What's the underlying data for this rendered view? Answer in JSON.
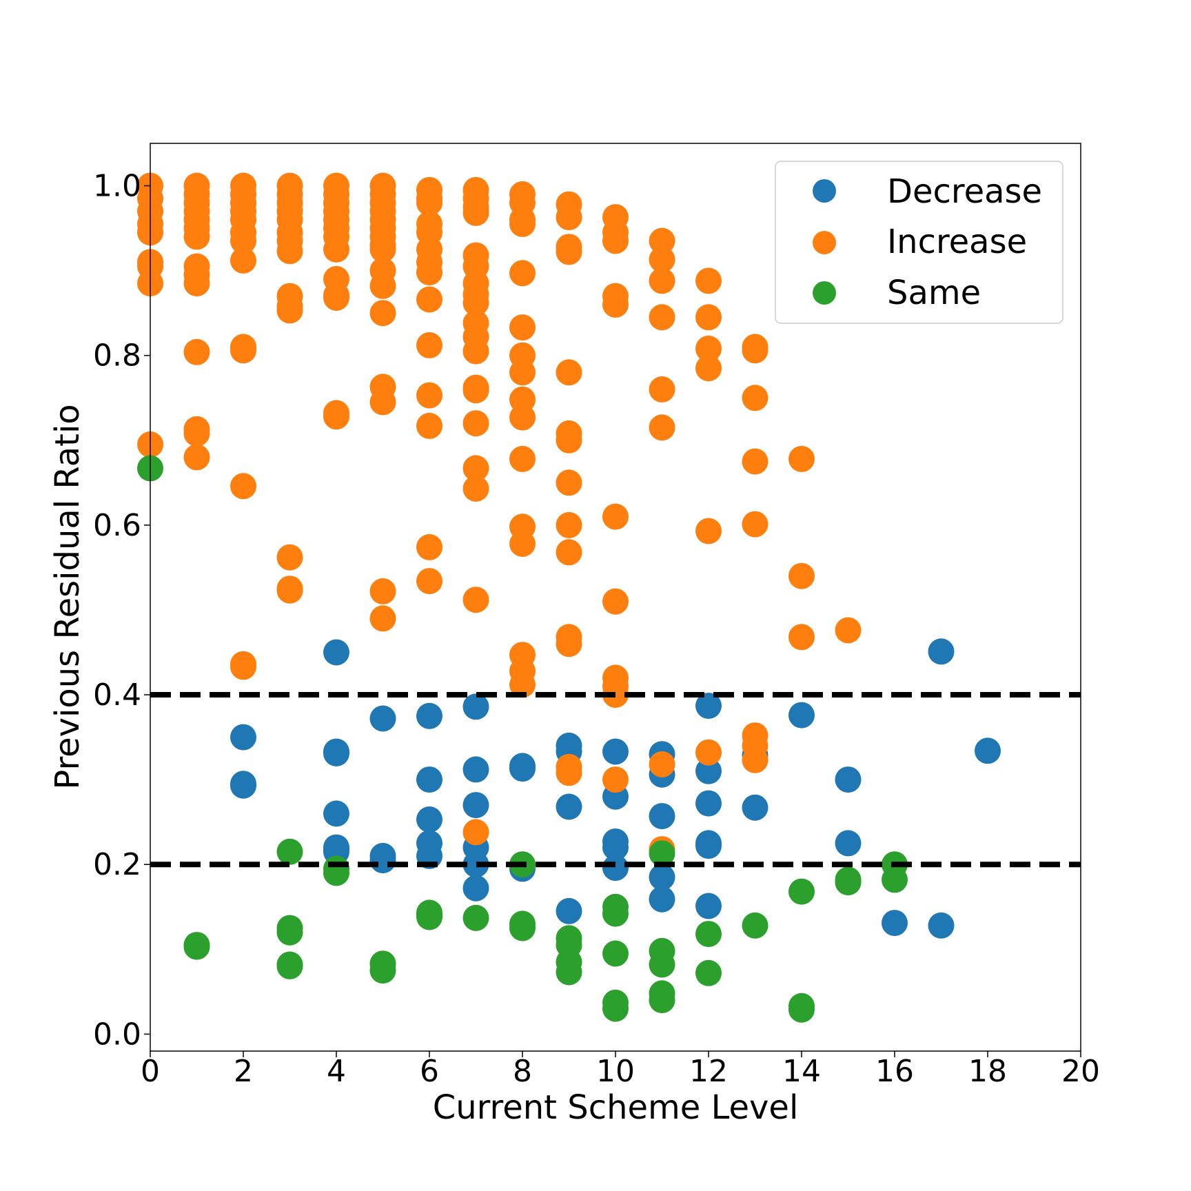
{
  "chart_data": {
    "type": "scatter",
    "title": "",
    "xlabel": "Current Scheme Level",
    "ylabel": "Previous Residual Ratio",
    "xlim": [
      0,
      20
    ],
    "ylim": [
      -0.02,
      1.05
    ],
    "xticks": [
      0,
      2,
      4,
      6,
      8,
      10,
      12,
      14,
      16,
      18,
      20
    ],
    "xtick_labels": [
      "0",
      "2",
      "4",
      "6",
      "8",
      "10",
      "12",
      "14",
      "16",
      "18",
      "20"
    ],
    "yticks": [
      0.0,
      0.2,
      0.4,
      0.6,
      0.8,
      1.0
    ],
    "ytick_labels": [
      "0.0",
      "0.2",
      "0.4",
      "0.6",
      "0.8",
      "1.0"
    ],
    "grid": false,
    "legend_position": "top-right",
    "hlines": [
      {
        "y": 0.4,
        "style": "dashed",
        "color": "#000000"
      },
      {
        "y": 0.2,
        "style": "dashed",
        "color": "#000000"
      }
    ],
    "series": [
      {
        "name": "Decrease",
        "color": "#1f77b4",
        "points": [
          [
            2,
            0.35
          ],
          [
            2,
            0.295
          ],
          [
            2,
            0.293
          ],
          [
            4,
            0.45
          ],
          [
            4,
            0.333
          ],
          [
            4,
            0.331
          ],
          [
            4,
            0.26
          ],
          [
            4,
            0.22
          ],
          [
            4,
            0.218
          ],
          [
            4,
            0.215
          ],
          [
            5,
            0.372
          ],
          [
            5,
            0.21
          ],
          [
            5,
            0.205
          ],
          [
            6,
            0.375
          ],
          [
            6,
            0.3
          ],
          [
            6,
            0.253
          ],
          [
            6,
            0.225
          ],
          [
            6,
            0.21
          ],
          [
            6,
            0.14
          ],
          [
            7,
            0.386
          ],
          [
            7,
            0.312
          ],
          [
            7,
            0.27
          ],
          [
            7,
            0.22
          ],
          [
            7,
            0.2
          ],
          [
            7,
            0.172
          ],
          [
            8,
            0.316
          ],
          [
            8,
            0.313
          ],
          [
            8,
            0.195
          ],
          [
            9,
            0.34
          ],
          [
            9,
            0.333
          ],
          [
            9,
            0.268
          ],
          [
            9,
            0.145
          ],
          [
            10,
            0.333
          ],
          [
            10,
            0.28
          ],
          [
            10,
            0.227
          ],
          [
            10,
            0.22
          ],
          [
            10,
            0.196
          ],
          [
            11,
            0.33
          ],
          [
            11,
            0.306
          ],
          [
            11,
            0.257
          ],
          [
            11,
            0.185
          ],
          [
            11,
            0.159
          ],
          [
            12,
            0.387
          ],
          [
            12,
            0.31
          ],
          [
            12,
            0.272
          ],
          [
            12,
            0.225
          ],
          [
            12,
            0.222
          ],
          [
            12,
            0.151
          ],
          [
            13,
            0.329
          ],
          [
            13,
            0.267
          ],
          [
            14,
            0.376
          ],
          [
            15,
            0.3
          ],
          [
            15,
            0.225
          ],
          [
            16,
            0.131
          ],
          [
            17,
            0.451
          ],
          [
            17,
            0.128
          ],
          [
            18,
            0.334
          ]
        ]
      },
      {
        "name": "Increase",
        "color": "#ff7f0e",
        "points": [
          [
            0,
            1.0
          ],
          [
            0,
            0.985
          ],
          [
            0,
            0.97
          ],
          [
            0,
            0.955
          ],
          [
            0,
            0.945
          ],
          [
            0,
            0.91
          ],
          [
            0,
            0.905
          ],
          [
            0,
            0.885
          ],
          [
            0,
            0.695
          ],
          [
            1,
            1.0
          ],
          [
            1,
            0.99
          ],
          [
            1,
            0.98
          ],
          [
            1,
            0.97
          ],
          [
            1,
            0.96
          ],
          [
            1,
            0.95
          ],
          [
            1,
            0.94
          ],
          [
            1,
            0.905
          ],
          [
            1,
            0.895
          ],
          [
            1,
            0.885
          ],
          [
            1,
            0.804
          ],
          [
            1,
            0.713
          ],
          [
            1,
            0.708
          ],
          [
            1,
            0.68
          ],
          [
            2,
            1.0
          ],
          [
            2,
            0.99
          ],
          [
            2,
            0.98
          ],
          [
            2,
            0.97
          ],
          [
            2,
            0.96
          ],
          [
            2,
            0.945
          ],
          [
            2,
            0.935
          ],
          [
            2,
            0.912
          ],
          [
            2,
            0.81
          ],
          [
            2,
            0.806
          ],
          [
            2,
            0.646
          ],
          [
            2,
            0.436
          ],
          [
            2,
            0.433
          ],
          [
            3,
            1.0
          ],
          [
            3,
            0.99
          ],
          [
            3,
            0.98
          ],
          [
            3,
            0.97
          ],
          [
            3,
            0.96
          ],
          [
            3,
            0.945
          ],
          [
            3,
            0.935
          ],
          [
            3,
            0.923
          ],
          [
            3,
            0.87
          ],
          [
            3,
            0.858
          ],
          [
            3,
            0.853
          ],
          [
            3,
            0.562
          ],
          [
            3,
            0.525
          ],
          [
            3,
            0.523
          ],
          [
            4,
            1.0
          ],
          [
            4,
            0.99
          ],
          [
            4,
            0.98
          ],
          [
            4,
            0.97
          ],
          [
            4,
            0.96
          ],
          [
            4,
            0.95
          ],
          [
            4,
            0.94
          ],
          [
            4,
            0.925
          ],
          [
            4,
            0.89
          ],
          [
            4,
            0.871
          ],
          [
            4,
            0.868
          ],
          [
            4,
            0.732
          ],
          [
            4,
            0.728
          ],
          [
            5,
            1.0
          ],
          [
            5,
            0.99
          ],
          [
            5,
            0.98
          ],
          [
            5,
            0.97
          ],
          [
            5,
            0.96
          ],
          [
            5,
            0.95
          ],
          [
            5,
            0.94
          ],
          [
            5,
            0.93
          ],
          [
            5,
            0.925
          ],
          [
            5,
            0.9
          ],
          [
            5,
            0.882
          ],
          [
            5,
            0.85
          ],
          [
            5,
            0.763
          ],
          [
            5,
            0.745
          ],
          [
            5,
            0.522
          ],
          [
            5,
            0.49
          ],
          [
            6,
            0.995
          ],
          [
            6,
            0.985
          ],
          [
            6,
            0.98
          ],
          [
            6,
            0.955
          ],
          [
            6,
            0.945
          ],
          [
            6,
            0.925
          ],
          [
            6,
            0.91
          ],
          [
            6,
            0.898
          ],
          [
            6,
            0.866
          ],
          [
            6,
            0.812
          ],
          [
            6,
            0.753
          ],
          [
            6,
            0.717
          ],
          [
            6,
            0.574
          ],
          [
            6,
            0.534
          ],
          [
            7,
            0.995
          ],
          [
            7,
            0.985
          ],
          [
            7,
            0.975
          ],
          [
            7,
            0.968
          ],
          [
            7,
            0.918
          ],
          [
            7,
            0.905
          ],
          [
            7,
            0.885
          ],
          [
            7,
            0.872
          ],
          [
            7,
            0.862
          ],
          [
            7,
            0.838
          ],
          [
            7,
            0.822
          ],
          [
            7,
            0.805
          ],
          [
            7,
            0.762
          ],
          [
            7,
            0.759
          ],
          [
            7,
            0.72
          ],
          [
            7,
            0.667
          ],
          [
            7,
            0.643
          ],
          [
            7,
            0.512
          ],
          [
            7,
            0.238
          ],
          [
            8,
            0.99
          ],
          [
            8,
            0.98
          ],
          [
            8,
            0.96
          ],
          [
            8,
            0.955
          ],
          [
            8,
            0.897
          ],
          [
            8,
            0.833
          ],
          [
            8,
            0.8
          ],
          [
            8,
            0.78
          ],
          [
            8,
            0.748
          ],
          [
            8,
            0.727
          ],
          [
            8,
            0.678
          ],
          [
            8,
            0.598
          ],
          [
            8,
            0.578
          ],
          [
            8,
            0.447
          ],
          [
            8,
            0.428
          ],
          [
            8,
            0.412
          ],
          [
            9,
            0.978
          ],
          [
            9,
            0.963
          ],
          [
            9,
            0.928
          ],
          [
            9,
            0.922
          ],
          [
            9,
            0.78
          ],
          [
            9,
            0.708
          ],
          [
            9,
            0.7
          ],
          [
            9,
            0.65
          ],
          [
            9,
            0.6
          ],
          [
            9,
            0.568
          ],
          [
            9,
            0.468
          ],
          [
            9,
            0.46
          ],
          [
            9,
            0.315
          ],
          [
            9,
            0.308
          ],
          [
            10,
            0.963
          ],
          [
            10,
            0.945
          ],
          [
            10,
            0.935
          ],
          [
            10,
            0.87
          ],
          [
            10,
            0.86
          ],
          [
            10,
            0.61
          ],
          [
            10,
            0.51
          ],
          [
            10,
            0.42
          ],
          [
            10,
            0.41
          ],
          [
            10,
            0.4
          ],
          [
            10,
            0.3
          ],
          [
            11,
            0.935
          ],
          [
            11,
            0.913
          ],
          [
            11,
            0.888
          ],
          [
            11,
            0.845
          ],
          [
            11,
            0.76
          ],
          [
            11,
            0.715
          ],
          [
            11,
            0.318
          ],
          [
            11,
            0.218
          ],
          [
            12,
            0.888
          ],
          [
            12,
            0.845
          ],
          [
            12,
            0.808
          ],
          [
            12,
            0.785
          ],
          [
            12,
            0.593
          ],
          [
            12,
            0.332
          ],
          [
            13,
            0.81
          ],
          [
            13,
            0.806
          ],
          [
            13,
            0.75
          ],
          [
            13,
            0.675
          ],
          [
            13,
            0.601
          ],
          [
            13,
            0.352
          ],
          [
            13,
            0.34
          ],
          [
            13,
            0.323
          ],
          [
            14,
            0.678
          ],
          [
            14,
            0.54
          ],
          [
            14,
            0.468
          ],
          [
            15,
            0.476
          ]
        ]
      },
      {
        "name": "Same",
        "color": "#2ca02c",
        "points": [
          [
            0,
            0.667
          ],
          [
            1,
            0.105
          ],
          [
            1,
            0.103
          ],
          [
            3,
            0.215
          ],
          [
            3,
            0.125
          ],
          [
            3,
            0.12
          ],
          [
            3,
            0.082
          ],
          [
            3,
            0.08
          ],
          [
            4,
            0.195
          ],
          [
            4,
            0.19
          ],
          [
            5,
            0.083
          ],
          [
            5,
            0.075
          ],
          [
            6,
            0.143
          ],
          [
            6,
            0.138
          ],
          [
            7,
            0.137
          ],
          [
            8,
            0.2
          ],
          [
            8,
            0.13
          ],
          [
            8,
            0.125
          ],
          [
            9,
            0.113
          ],
          [
            9,
            0.105
          ],
          [
            9,
            0.085
          ],
          [
            9,
            0.073
          ],
          [
            10,
            0.15
          ],
          [
            10,
            0.142
          ],
          [
            10,
            0.095
          ],
          [
            10,
            0.037
          ],
          [
            10,
            0.03
          ],
          [
            11,
            0.213
          ],
          [
            11,
            0.098
          ],
          [
            11,
            0.082
          ],
          [
            11,
            0.048
          ],
          [
            11,
            0.04
          ],
          [
            12,
            0.118
          ],
          [
            12,
            0.072
          ],
          [
            13,
            0.128
          ],
          [
            14,
            0.168
          ],
          [
            14,
            0.033
          ],
          [
            14,
            0.029
          ],
          [
            15,
            0.182
          ],
          [
            15,
            0.179
          ],
          [
            16,
            0.2
          ],
          [
            16,
            0.182
          ]
        ]
      }
    ]
  }
}
